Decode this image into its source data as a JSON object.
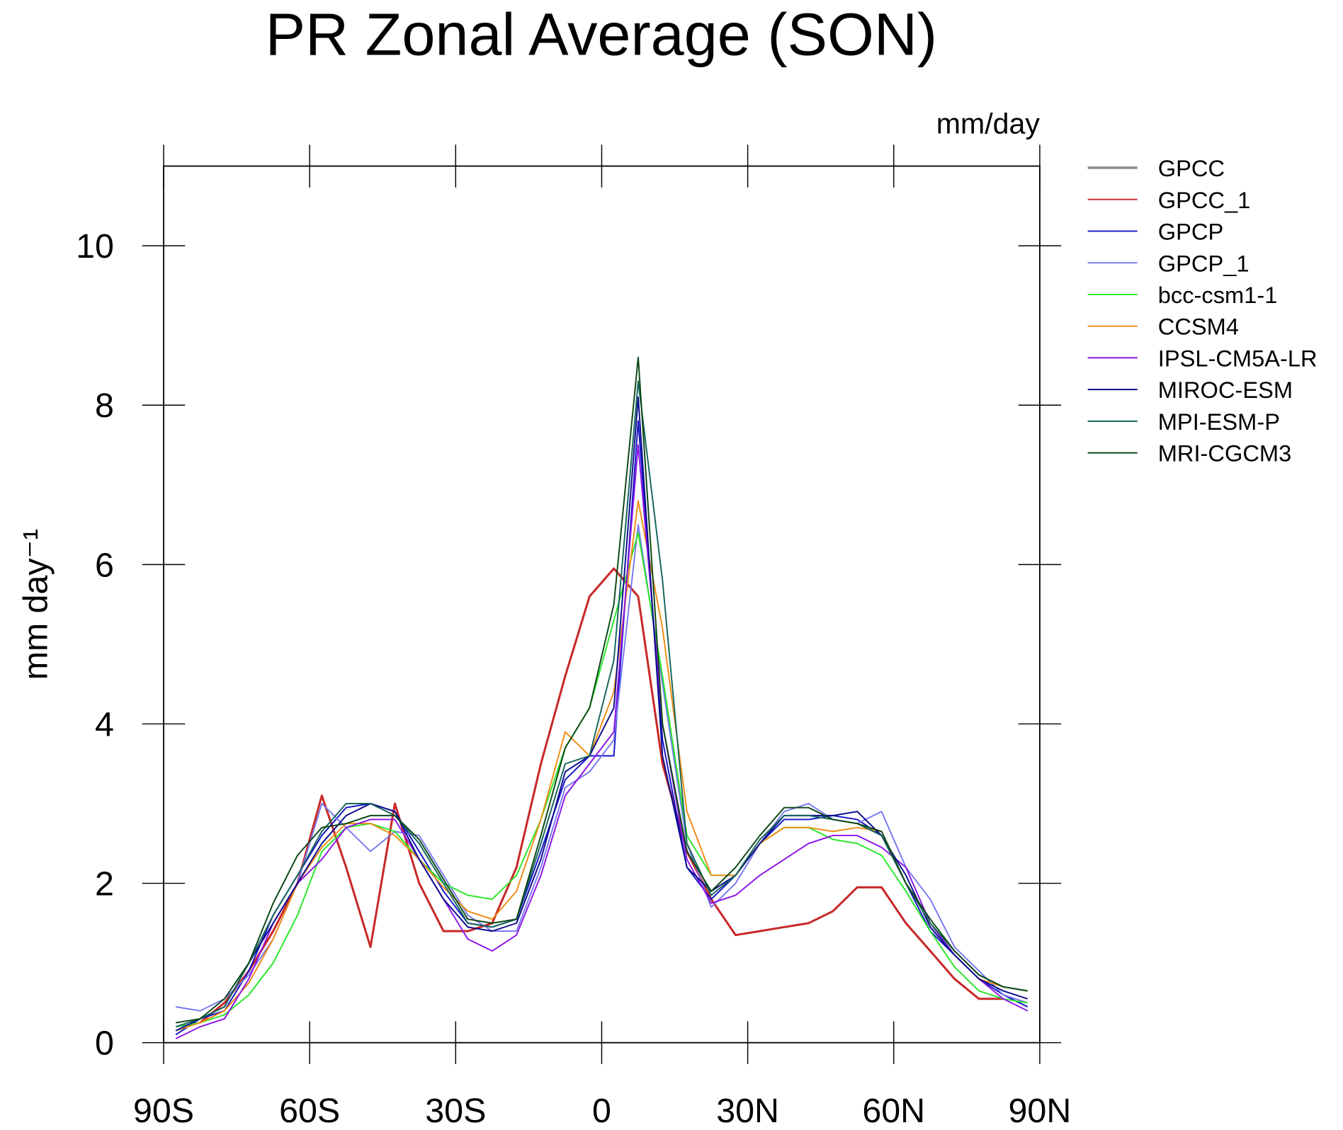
{
  "chart_data": {
    "type": "line",
    "title": "PR Zonal Average (SON)",
    "units": "mm/day",
    "ylabel": "mm day⁻¹",
    "x": [
      -87.5,
      -82.5,
      -77.5,
      -72.5,
      -67.5,
      -62.5,
      -57.5,
      -52.5,
      -47.5,
      -42.5,
      -37.5,
      -32.5,
      -27.5,
      -22.5,
      -17.5,
      -12.5,
      -7.5,
      -2.5,
      2.5,
      7.5,
      12.5,
      17.5,
      22.5,
      27.5,
      32.5,
      37.5,
      42.5,
      47.5,
      52.5,
      57.5,
      62.5,
      67.5,
      72.5,
      77.5,
      82.5,
      87.5
    ],
    "xlim": [
      -90,
      90
    ],
    "xticks": [
      {
        "value": -90,
        "label": "90S"
      },
      {
        "value": -60,
        "label": "60S"
      },
      {
        "value": -30,
        "label": "30S"
      },
      0,
      {
        "value": 30,
        "label": "30N"
      },
      {
        "value": 60,
        "label": "60N"
      },
      {
        "value": 90,
        "label": "90N"
      }
    ],
    "ylim": [
      0,
      11
    ],
    "yticks": [
      0,
      2,
      4,
      6,
      8,
      10
    ],
    "series": [
      {
        "name": "GPCC",
        "color": "#909090",
        "values": [
          null,
          null,
          null,
          null,
          null,
          null,
          null,
          null,
          null,
          null,
          null,
          null,
          null,
          null,
          null,
          null,
          null,
          null,
          null,
          null,
          null,
          null,
          null,
          null,
          null,
          null,
          null,
          null,
          null,
          null,
          null,
          null,
          null,
          null,
          null,
          null
        ]
      },
      {
        "name": "GPCC_1",
        "color": "#c82828",
        "values": [
          null,
          0.25,
          0.5,
          0.9,
          1.4,
          2.0,
          3.1,
          2.2,
          1.2,
          3.0,
          2.0,
          1.4,
          1.4,
          1.5,
          2.2,
          3.5,
          4.6,
          5.6,
          5.95,
          5.6,
          3.5,
          2.4,
          1.8,
          1.35,
          1.4,
          1.45,
          1.5,
          1.65,
          1.95,
          1.95,
          1.5,
          1.15,
          0.8,
          0.55,
          0.55,
          null
        ]
      },
      {
        "name": "GPCP",
        "color": "#1414c8",
        "values": [
          0.1,
          0.3,
          0.4,
          0.9,
          1.6,
          2.1,
          2.6,
          2.95,
          3.0,
          2.9,
          2.4,
          1.9,
          1.5,
          1.45,
          1.55,
          2.4,
          3.3,
          3.6,
          3.6,
          7.8,
          3.8,
          2.2,
          1.8,
          2.1,
          2.5,
          2.8,
          2.8,
          2.85,
          2.8,
          2.6,
          2.0,
          1.4,
          1.1,
          0.8,
          0.6,
          0.45
        ]
      },
      {
        "name": "GPCP_1",
        "color": "#7878f0",
        "values": [
          0.45,
          0.4,
          0.55,
          0.85,
          1.3,
          2.0,
          3.0,
          2.7,
          2.4,
          2.65,
          2.6,
          2.1,
          1.6,
          1.4,
          1.4,
          2.2,
          3.2,
          3.4,
          3.8,
          6.5,
          4.5,
          2.5,
          1.7,
          2.0,
          2.5,
          2.9,
          3.0,
          2.8,
          2.75,
          2.9,
          2.2,
          1.8,
          1.2,
          0.9,
          0.6,
          0.5
        ]
      },
      {
        "name": "bcc-csm1-1",
        "color": "#28e628",
        "values": [
          0.2,
          0.25,
          0.35,
          0.6,
          1.0,
          1.6,
          2.4,
          2.7,
          2.75,
          2.65,
          2.3,
          2.0,
          1.85,
          1.8,
          2.1,
          2.8,
          3.7,
          4.2,
          5.3,
          6.4,
          4.6,
          2.6,
          2.1,
          2.1,
          2.5,
          2.7,
          2.7,
          2.55,
          2.5,
          2.35,
          1.9,
          1.4,
          0.95,
          0.65,
          0.55,
          0.5
        ]
      },
      {
        "name": "CCSM4",
        "color": "#f08c14",
        "values": [
          0.15,
          0.25,
          0.4,
          0.75,
          1.3,
          2.0,
          2.45,
          2.75,
          2.75,
          2.6,
          2.3,
          1.95,
          1.65,
          1.55,
          1.9,
          2.8,
          3.9,
          3.6,
          4.4,
          6.8,
          5.2,
          2.9,
          2.1,
          2.1,
          2.5,
          2.7,
          2.7,
          2.65,
          2.7,
          2.65,
          2.0,
          1.5,
          1.1,
          0.8,
          0.7,
          0.65
        ]
      },
      {
        "name": "IPSL-CM5A-LR",
        "color": "#8c14e6",
        "values": [
          0.05,
          0.2,
          0.3,
          0.8,
          1.5,
          2.0,
          2.3,
          2.7,
          2.8,
          2.8,
          2.3,
          1.8,
          1.3,
          1.15,
          1.35,
          2.1,
          3.1,
          3.5,
          3.9,
          7.5,
          4.0,
          2.3,
          1.75,
          1.85,
          2.1,
          2.3,
          2.5,
          2.6,
          2.6,
          2.45,
          2.2,
          1.5,
          1.1,
          0.8,
          0.55,
          0.4
        ]
      },
      {
        "name": "MIROC-ESM",
        "color": "#0a0a8c",
        "values": [
          0.15,
          0.3,
          0.45,
          1.0,
          1.5,
          2.0,
          2.5,
          2.85,
          3.0,
          2.9,
          2.3,
          1.8,
          1.45,
          1.4,
          1.5,
          2.3,
          3.4,
          3.6,
          4.2,
          8.1,
          3.6,
          2.2,
          1.9,
          2.1,
          2.5,
          2.85,
          2.85,
          2.85,
          2.9,
          2.6,
          2.1,
          1.45,
          1.1,
          0.8,
          0.65,
          0.55
        ]
      },
      {
        "name": "MPI-ESM-P",
        "color": "#14645a",
        "values": [
          0.2,
          0.3,
          0.45,
          1.0,
          1.6,
          2.1,
          2.65,
          3.0,
          3.0,
          2.85,
          2.5,
          2.0,
          1.5,
          1.45,
          1.55,
          2.5,
          3.5,
          3.6,
          4.8,
          8.3,
          5.8,
          2.5,
          1.85,
          2.1,
          2.55,
          2.85,
          2.85,
          2.8,
          2.75,
          2.6,
          2.0,
          1.5,
          1.15,
          0.85,
          0.7,
          0.65
        ]
      },
      {
        "name": "MRI-CGCM3",
        "color": "#0a4614",
        "values": [
          0.25,
          0.3,
          0.55,
          1.0,
          1.75,
          2.35,
          2.7,
          2.75,
          2.85,
          2.85,
          2.55,
          2.05,
          1.55,
          1.5,
          1.55,
          2.6,
          3.7,
          4.2,
          5.5,
          8.6,
          4.0,
          2.4,
          1.9,
          2.2,
          2.6,
          2.95,
          2.95,
          2.8,
          2.75,
          2.65,
          2.0,
          1.55,
          1.15,
          0.85,
          0.7,
          0.65
        ]
      }
    ]
  }
}
